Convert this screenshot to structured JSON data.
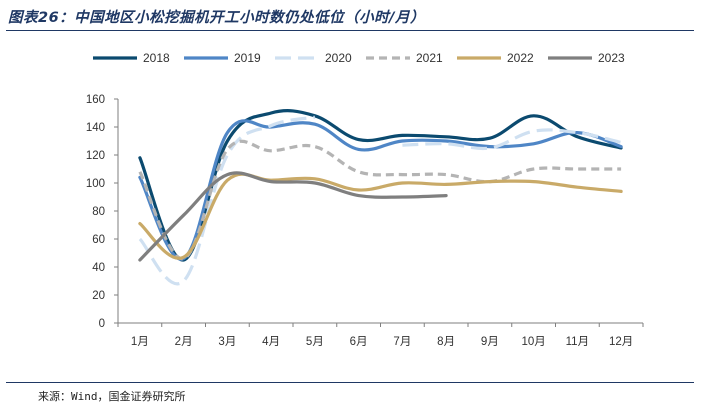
{
  "title": "图表26：中国地区小松挖掘机开工小时数仍处低位（小时/月）",
  "source": "来源：Wind，国金证券研究所",
  "chart_data": {
    "type": "line",
    "categories": [
      "1月",
      "2月",
      "3月",
      "4月",
      "5月",
      "6月",
      "7月",
      "8月",
      "9月",
      "10月",
      "11月",
      "12月"
    ],
    "ylim": [
      0,
      160
    ],
    "yticks": [
      0,
      20,
      40,
      60,
      80,
      100,
      120,
      140,
      160
    ],
    "grid": false,
    "legend_position": "top",
    "series": [
      {
        "name": "2018",
        "color": "#0b4a6f",
        "dash": "solid",
        "values": [
          118,
          45,
          130,
          150,
          148,
          131,
          134,
          133,
          132,
          148,
          133,
          125
        ]
      },
      {
        "name": "2019",
        "color": "#4f86c6",
        "dash": "solid",
        "values": [
          104,
          46,
          136,
          140,
          142,
          124,
          130,
          130,
          126,
          128,
          136,
          126
        ]
      },
      {
        "name": "2020",
        "color": "#cfe0f1",
        "dash": "longdash",
        "values": [
          60,
          30,
          120,
          141,
          147,
          null,
          127,
          128,
          125,
          137,
          136,
          129
        ]
      },
      {
        "name": "2021",
        "color": "#b4b4b4",
        "dash": "dash",
        "values": [
          108,
          46,
          124,
          123,
          126,
          108,
          106,
          106,
          101,
          110,
          110,
          110
        ]
      },
      {
        "name": "2022",
        "color": "#c9aa68",
        "dash": "solid",
        "values": [
          71,
          47,
          102,
          102,
          103,
          95,
          100,
          99,
          101,
          101,
          97,
          94
        ]
      },
      {
        "name": "2023",
        "color": "#7f7f7f",
        "dash": "solid",
        "values": [
          45,
          77,
          106,
          101,
          100,
          91,
          90,
          91,
          null,
          null,
          null,
          null
        ]
      }
    ]
  }
}
